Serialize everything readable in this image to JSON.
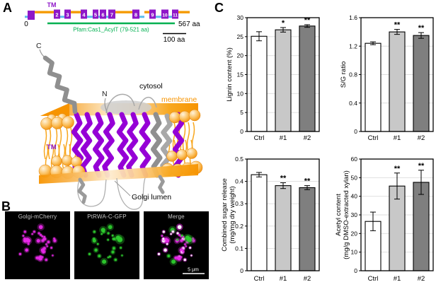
{
  "panel_a": {
    "label": "A",
    "domain_diagram": {
      "tm_label": "TM",
      "start_label": "0",
      "end_label": "567 aa",
      "pfam_label": "Pfam:Cas1_AcylT (79-521 aa)",
      "scalebar_label": "100 aa",
      "tm_numbers": [
        "2",
        "3",
        "4",
        "5",
        "6",
        "7",
        "8",
        "9",
        "10",
        "11"
      ],
      "colors": {
        "cytosolic_segment": "#F59B00",
        "lumenal_segment": "#5BBBEB",
        "tm_box": "#8E17C8",
        "pfam_green": "#00B050"
      }
    },
    "structure": {
      "labels": {
        "c_term": "C",
        "n_term": "N",
        "cytosol": "cytosol",
        "membrane": "membrane",
        "tm": "TM",
        "golgi_lumen": "Golgi lumen"
      },
      "colors": {
        "membrane_orange": "#F79400",
        "tm_helix_purple": "#9500D6",
        "other_helix_gray": "#8F8F8F"
      }
    }
  },
  "panel_b": {
    "label": "B",
    "images": [
      {
        "title": "Golgi-mCherry"
      },
      {
        "title": "PtRWA-C-GFP"
      },
      {
        "title": "Merge"
      }
    ],
    "scale_bar_label": "5 μm",
    "colors": {
      "mcherry": "#E829E8",
      "gfp": "#2ECC2E",
      "overlap": "#FFFFFF",
      "background": "#000000"
    }
  },
  "panel_c": {
    "label": "C"
  },
  "chart_data": [
    {
      "type": "bar",
      "ylabel_lines": [
        "Lignin content (%)"
      ],
      "categories": [
        "Ctrl",
        "#1",
        "#2"
      ],
      "values": [
        25.1,
        26.8,
        27.8
      ],
      "errors": [
        1.2,
        0.6,
        0.35
      ],
      "significance": [
        "",
        "*",
        "**"
      ],
      "ylim": [
        0,
        30
      ],
      "yticks": [
        0,
        5,
        10,
        15,
        20,
        25,
        30
      ],
      "bar_colors": [
        "#FFFFFF",
        "#C8C8C8",
        "#7F7F7F"
      ],
      "grid": true,
      "xlabel": ""
    },
    {
      "type": "bar",
      "ylabel_lines": [
        "S/G ratio"
      ],
      "categories": [
        "Ctrl",
        "#1",
        "#2"
      ],
      "values": [
        1.24,
        1.4,
        1.35
      ],
      "errors": [
        0.02,
        0.035,
        0.04
      ],
      "significance": [
        "",
        "**",
        "**"
      ],
      "ylim": [
        0,
        1.6
      ],
      "yticks": [
        0,
        0.4,
        0.8,
        1.2,
        1.6
      ],
      "bar_colors": [
        "#FFFFFF",
        "#C8C8C8",
        "#7F7F7F"
      ],
      "grid": true,
      "xlabel": ""
    },
    {
      "type": "bar",
      "ylabel_lines": [
        "Combined sugar release",
        "(mg/mg dry weight)"
      ],
      "categories": [
        "Ctrl",
        "#1",
        "#2"
      ],
      "values": [
        0.43,
        0.381,
        0.372
      ],
      "errors": [
        0.01,
        0.013,
        0.009
      ],
      "significance": [
        "",
        "**",
        "**"
      ],
      "ylim": [
        0,
        0.5
      ],
      "yticks": [
        0,
        0.1,
        0.2,
        0.3,
        0.4,
        0.5
      ],
      "bar_colors": [
        "#FFFFFF",
        "#C8C8C8",
        "#7F7F7F"
      ],
      "grid": true,
      "xlabel": ""
    },
    {
      "type": "bar",
      "ylabel_lines": [
        "Acetyl content",
        "(mg/g DMSO-extracted xylan)"
      ],
      "categories": [
        "Ctrl",
        "#1",
        "#2"
      ],
      "values": [
        26.5,
        45.5,
        47.5
      ],
      "errors": [
        5.0,
        7.0,
        6.5
      ],
      "significance": [
        "",
        "**",
        "**"
      ],
      "ylim": [
        0,
        60
      ],
      "yticks": [
        0,
        10,
        20,
        30,
        40,
        50,
        60
      ],
      "bar_colors": [
        "#FFFFFF",
        "#C8C8C8",
        "#7F7F7F"
      ],
      "grid": true,
      "xlabel": ""
    }
  ]
}
